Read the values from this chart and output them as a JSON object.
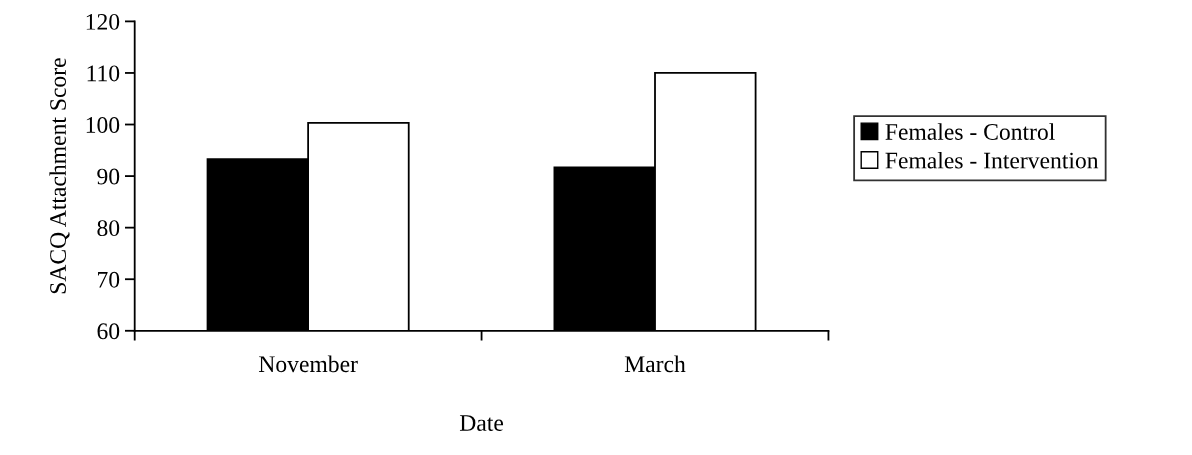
{
  "chart_data": {
    "type": "bar",
    "xlabel": "Date",
    "ylabel": "SACQ Attachment Score",
    "categories": [
      "November",
      "March"
    ],
    "series": [
      {
        "name": "Females - Control",
        "color": "#000000",
        "values": [
          93.3,
          91.7
        ]
      },
      {
        "name": "Females - Intervention",
        "color": "#ffffff",
        "values": [
          100.3,
          110
        ]
      }
    ],
    "ylim": [
      60,
      120
    ],
    "yticks": [
      60,
      70,
      80,
      90,
      100,
      110,
      120
    ],
    "grid": false,
    "legend": "right"
  }
}
